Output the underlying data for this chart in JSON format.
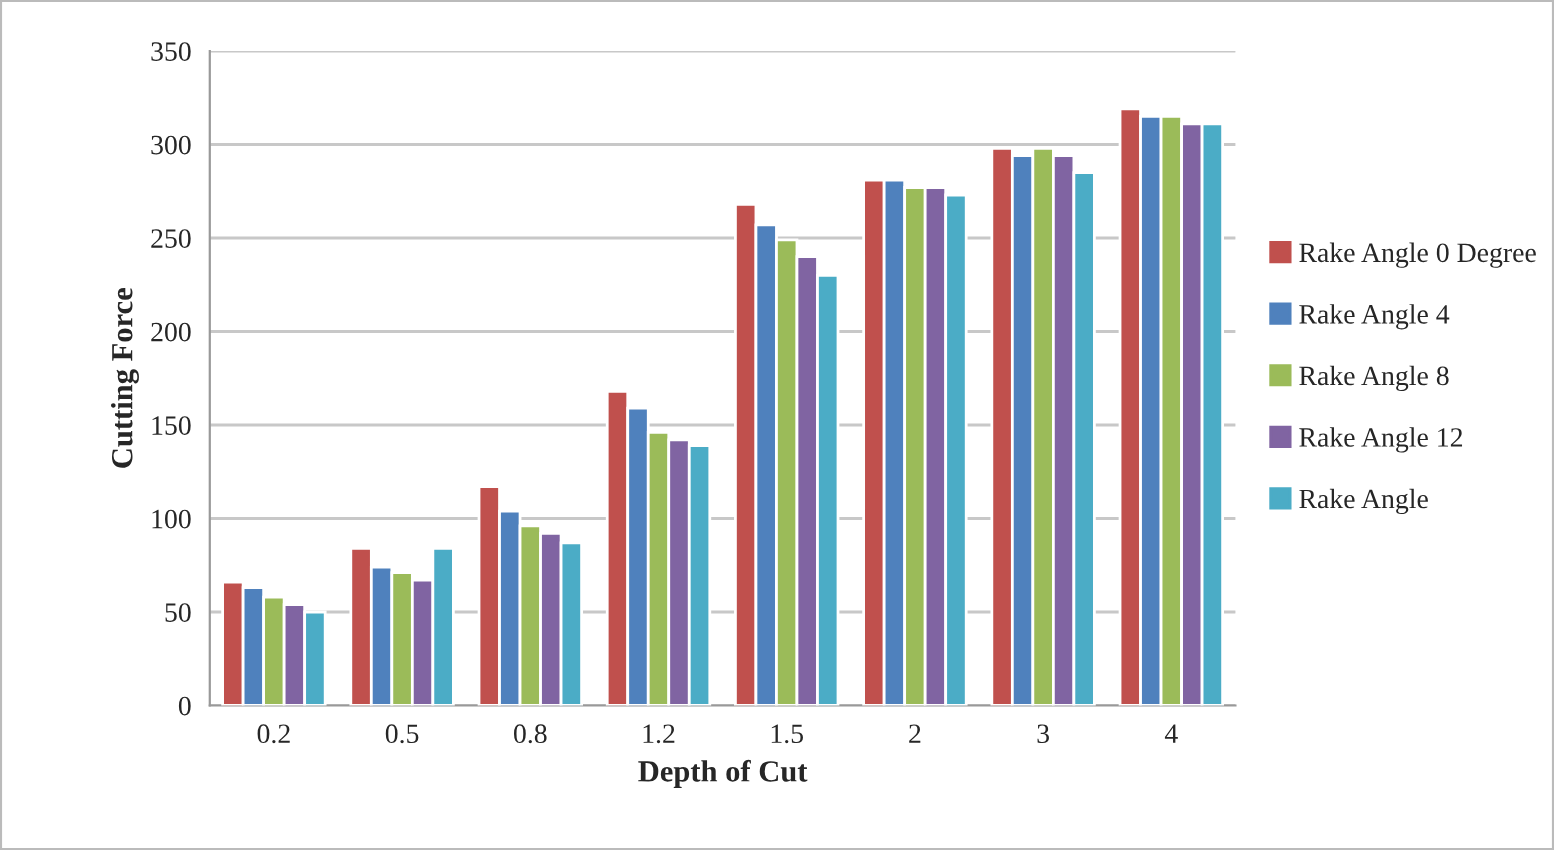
{
  "chart_data": {
    "type": "bar",
    "xlabel": "Depth of Cut",
    "ylabel": "Cutting Force",
    "categories": [
      "0.2",
      "0.5",
      "0.8",
      "1.2",
      "1.5",
      "2",
      "3",
      "4"
    ],
    "series": [
      {
        "name": "Rake Angle 0 Degree",
        "color": "#c0504d",
        "values": [
          66,
          84,
          117,
          168,
          268,
          281,
          298,
          319
        ]
      },
      {
        "name": "Rake Angle 4",
        "color": "#4f81bd",
        "values": [
          63,
          74,
          104,
          159,
          257,
          281,
          294,
          315
        ]
      },
      {
        "name": "Rake Angle 8",
        "color": "#9bbb59",
        "values": [
          58,
          71,
          96,
          146,
          249,
          277,
          298,
          315
        ]
      },
      {
        "name": "Rake Angle 12",
        "color": "#8064a2",
        "values": [
          54,
          67,
          92,
          142,
          240,
          277,
          294,
          311
        ]
      },
      {
        "name": "Rake Angle",
        "color": "#4bacc6",
        "values": [
          50,
          84,
          87,
          139,
          230,
          273,
          285,
          311
        ]
      }
    ],
    "ylim": [
      0,
      350
    ],
    "yticks": [
      0,
      50,
      100,
      150,
      200,
      250,
      300,
      350
    ],
    "grid": "y",
    "legend": "right"
  }
}
